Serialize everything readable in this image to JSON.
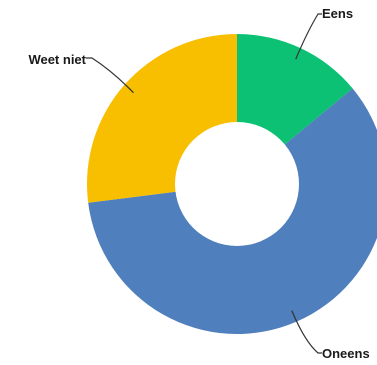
{
  "chart_data": {
    "type": "pie",
    "donut": true,
    "title": "",
    "slices": [
      {
        "label": "Eens",
        "value": 14,
        "color": "#0cc174"
      },
      {
        "label": "Oneens",
        "value": 59,
        "color": "#4f7fbc"
      },
      {
        "label": "Weet niet",
        "value": 27,
        "color": "#f8be00"
      }
    ],
    "legend": "none",
    "labels": "outside-with-leader-lines"
  }
}
